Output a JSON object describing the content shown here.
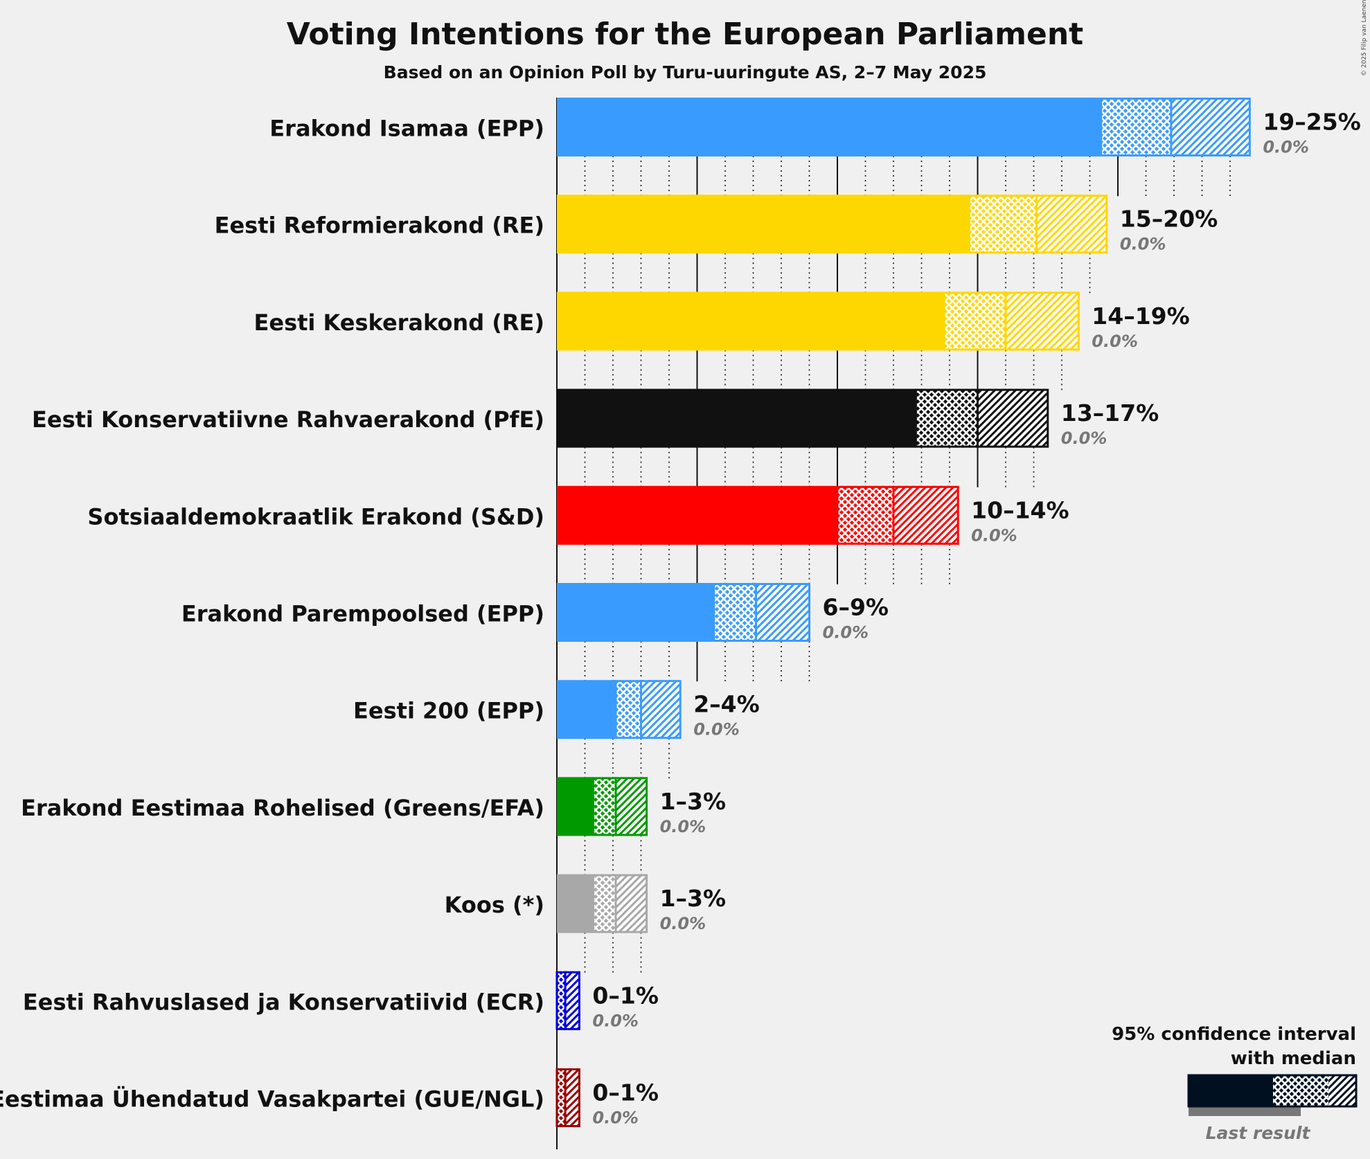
{
  "chart_data": {
    "type": "bar",
    "orientation": "horizontal",
    "title": "Voting Intentions for the European Parliament",
    "subtitle": "Based on an Opinion Poll by Turu-uuringute AS, 2–7 May 2025",
    "copyright": "© 2025 Filip van Laenen",
    "x_unit": "%",
    "xlim": [
      0,
      25
    ],
    "gridlines": {
      "major_every": 5,
      "minor_every": 1
    },
    "series": [
      {
        "party": "Erakond Isamaa (EPP)",
        "color": "#3a9bff",
        "lower": 19.4,
        "median": 21.9,
        "upper": 24.7,
        "range_label": "19–25%",
        "last_result_label": "0.0%",
        "last_result": 0.0
      },
      {
        "party": "Eesti Reformierakond (RE)",
        "color": "#ffd700",
        "lower": 14.7,
        "median": 17.1,
        "upper": 19.6,
        "range_label": "15–20%",
        "last_result_label": "0.0%",
        "last_result": 0.0
      },
      {
        "party": "Eesti Keskerakond (RE)",
        "color": "#ffd700",
        "lower": 13.8,
        "median": 16.0,
        "upper": 18.6,
        "range_label": "14–19%",
        "last_result_label": "0.0%",
        "last_result": 0.0
      },
      {
        "party": "Eesti Konservatiivne Rahvaerakond (PfE)",
        "color": "#111111",
        "lower": 12.8,
        "median": 15.0,
        "upper": 17.5,
        "range_label": "13–17%",
        "last_result_label": "0.0%",
        "last_result": 0.0
      },
      {
        "party": "Sotsiaaldemokraatlik Erakond (S&D)",
        "color": "#ff0000",
        "lower": 10.0,
        "median": 12.0,
        "upper": 14.3,
        "range_label": "10–14%",
        "last_result_label": "0.0%",
        "last_result": 0.0
      },
      {
        "party": "Erakond Parempoolsed (EPP)",
        "color": "#3a9bff",
        "lower": 5.6,
        "median": 7.1,
        "upper": 9.0,
        "range_label": "6–9%",
        "last_result_label": "0.0%",
        "last_result": 0.0
      },
      {
        "party": "Eesti 200 (EPP)",
        "color": "#3a9bff",
        "lower": 2.1,
        "median": 3.0,
        "upper": 4.4,
        "range_label": "2–4%",
        "last_result_label": "0.0%",
        "last_result": 0.0
      },
      {
        "party": "Erakond Eestimaa Rohelised (Greens/EFA)",
        "color": "#009a00",
        "lower": 1.3,
        "median": 2.1,
        "upper": 3.2,
        "range_label": "1–3%",
        "last_result_label": "0.0%",
        "last_result": 0.0
      },
      {
        "party": "Koos (*)",
        "color": "#a8a8a8",
        "lower": 1.3,
        "median": 2.1,
        "upper": 3.2,
        "range_label": "1–3%",
        "last_result_label": "0.0%",
        "last_result": 0.0
      },
      {
        "party": "Eesti Rahvuslased ja Konservatiivid (ECR)",
        "color": "#0000dd",
        "lower": 0.0,
        "median": 0.3,
        "upper": 0.8,
        "range_label": "0–1%",
        "last_result_label": "0.0%",
        "last_result": 0.0
      },
      {
        "party": "Eestimaa Ühendatud Vasakpartei (GUE/NGL)",
        "color": "#990000",
        "lower": 0.0,
        "median": 0.3,
        "upper": 0.8,
        "range_label": "0–1%",
        "last_result_label": "0.0%",
        "last_result": 0.0
      }
    ],
    "legend": {
      "position": "bottom-right",
      "line1": "95% confidence interval",
      "line2": "with median",
      "last_result": "Last result"
    }
  }
}
